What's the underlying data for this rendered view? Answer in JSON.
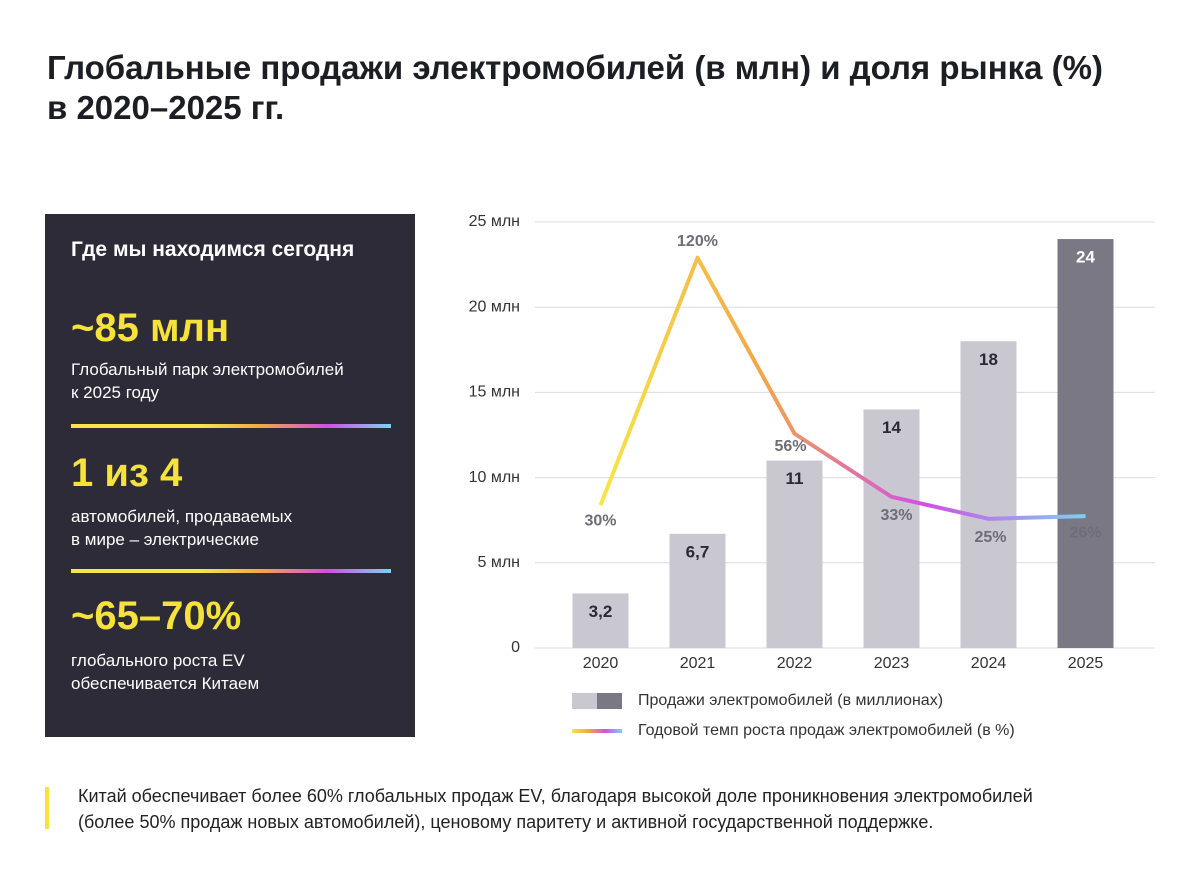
{
  "title_lines": [
    "Глобальные продажи электромобилей (в млн) и доля рынка (%)",
    "в 2020–2025 гг."
  ],
  "panel": {
    "heading": "Где мы находимся сегодня",
    "stats": [
      {
        "value": "~85 млн",
        "text_lines": [
          "Глобальный парк электромобилей",
          "к 2025 году"
        ]
      },
      {
        "value": "1 из 4",
        "text_lines": [
          "автомобилей, продаваемых",
          "в мире – электрические"
        ]
      },
      {
        "value": "~65–70%",
        "text_lines": [
          "глобального роста EV",
          "обеспечивается Китаем"
        ]
      }
    ]
  },
  "chart_data": {
    "type": "bar",
    "categories": [
      "2020",
      "2021",
      "2022",
      "2023",
      "2024",
      "2025"
    ],
    "series": [
      {
        "name": "Продажи электромобилей (в миллионах)",
        "type": "bar",
        "colors": [
          "#c9c7d0",
          "#c9c7d0",
          "#c9c7d0",
          "#c9c7d0",
          "#c9c7d0",
          "#7a7884"
        ],
        "values": [
          3.2,
          6.7,
          11,
          14,
          18,
          24
        ],
        "value_labels": [
          "3,2",
          "6,7",
          "11",
          "14",
          "18",
          "24"
        ]
      },
      {
        "name": "Годовой темп роста продаж электромобилей (в %)",
        "type": "line",
        "axis": "y2",
        "gradient": [
          "#f6e64a",
          "#f2a54a",
          "#d24fe6",
          "#7cd2f2"
        ],
        "values": [
          30,
          120,
          56,
          33,
          25,
          26
        ],
        "value_labels": [
          "30%",
          "120%",
          "56%",
          "33%",
          "25%",
          "26%"
        ]
      }
    ],
    "ylim": [
      0,
      25
    ],
    "yticks": [
      0,
      {
        "value": 5,
        "label": "5 млн"
      },
      {
        "value": 10,
        "label": "10 млн"
      },
      {
        "value": 15,
        "label": "15 млн"
      },
      {
        "value": 20,
        "label": "20 млн"
      },
      {
        "value": 25,
        "label": "25 млн"
      }
    ],
    "y2lim": [
      -22,
      133
    ],
    "grid": true,
    "legend": "bottom"
  },
  "footnote_lines": [
    "Китай обеспечивает более 60% глобальных продаж EV, благодаря высокой доле проникновения электромобилей",
    "(более 50% продаж новых автомобилей), ценовому паритету и активной государственной поддержке."
  ]
}
